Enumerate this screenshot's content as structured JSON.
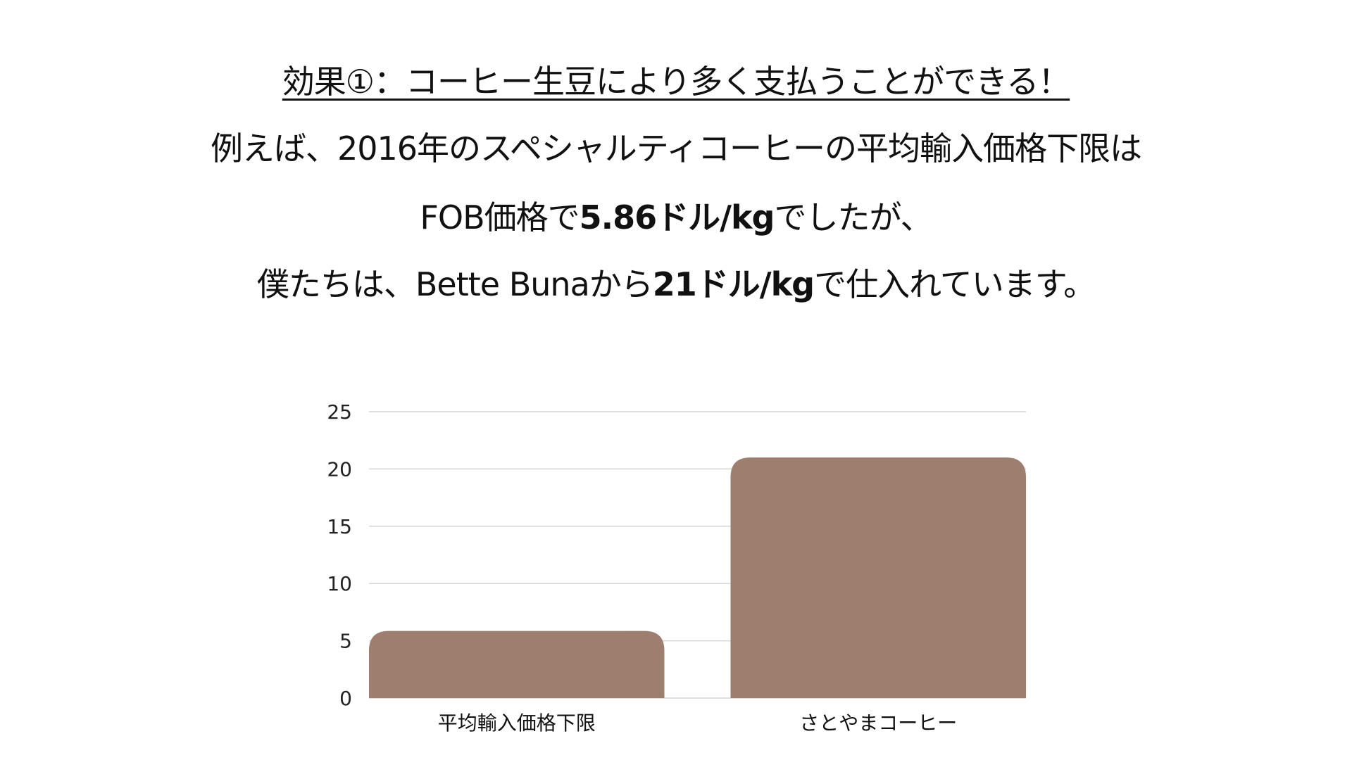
{
  "heading": {
    "title": "効果①：コーヒー生豆により多く支払うことができる！",
    "line2": "例えば、2016年のスペシャルティコーヒーの平均輸入価格下限は",
    "line3_pre": "FOB価格で",
    "line3_bold": "5.86ドル/kg",
    "line3_post": "でしたが、",
    "line4_pre": "僕たちは、Bette Bunaから",
    "line4_bold": "21ドル/kg",
    "line4_post": "で仕入れています。"
  },
  "chart_data": {
    "type": "bar",
    "categories": [
      "平均輸入価格下限",
      "さとやまコーヒー"
    ],
    "values": [
      5.86,
      21
    ],
    "ylim": [
      0,
      25
    ],
    "yticks": [
      "0",
      "5",
      "10",
      "15",
      "20",
      "25"
    ],
    "grid": true,
    "bar_color": "#9e7f6f",
    "grid_color": "#d6d6d6"
  }
}
